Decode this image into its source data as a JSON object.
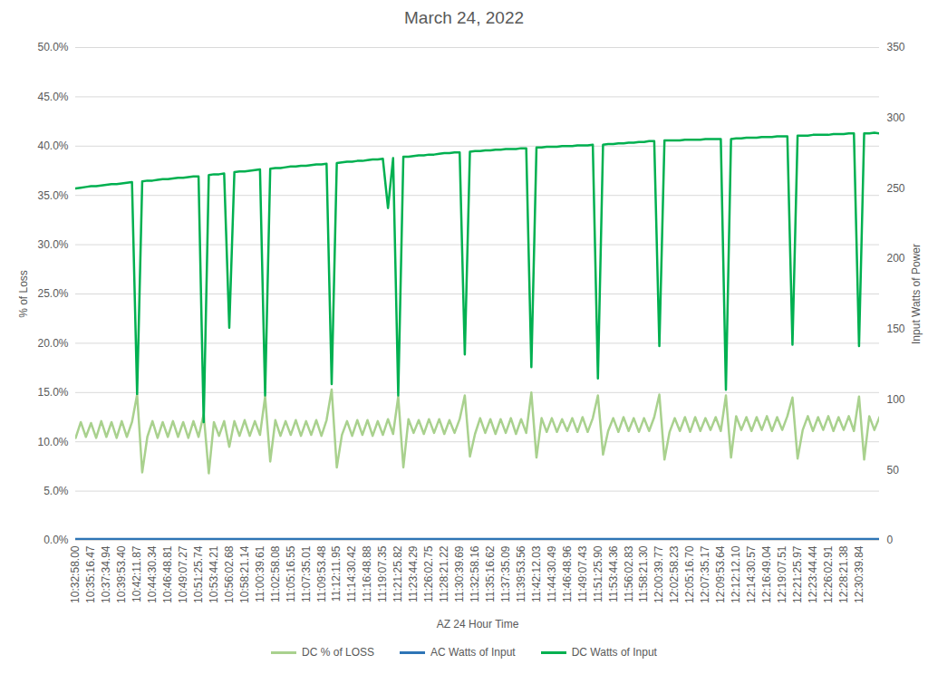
{
  "chart_data": {
    "type": "line",
    "title": "March 24, 2022",
    "x_label": "AZ 24 Hour Time",
    "y_label": "% of Loss",
    "y2_label": "Input Watts of Power",
    "grid": true,
    "legend": "bottom",
    "ylim": [
      0,
      50
    ],
    "yticks": [
      {
        "value": 0,
        "label": "0.0%"
      },
      {
        "value": 5,
        "label": "5.0%"
      },
      {
        "value": 10,
        "label": "10.0%"
      },
      {
        "value": 15,
        "label": "15.0%"
      },
      {
        "value": 20,
        "label": "20.0%"
      },
      {
        "value": 25,
        "label": "25.0%"
      },
      {
        "value": 30,
        "label": "30.0%"
      },
      {
        "value": 35,
        "label": "35.0%"
      },
      {
        "value": 40,
        "label": "40.0%"
      },
      {
        "value": 45,
        "label": "45.0%"
      },
      {
        "value": 50,
        "label": "50.0%"
      }
    ],
    "y2lim": [
      0,
      350
    ],
    "y2ticks": [
      0,
      50,
      100,
      150,
      200,
      250,
      300,
      350
    ],
    "categories": [
      "10:32:58.00",
      null,
      null,
      "10:35:16.47",
      null,
      null,
      "10:37:34.94",
      null,
      null,
      "10:39:53.40",
      null,
      null,
      "10:42:11.87",
      null,
      null,
      "10:44:30.34",
      null,
      null,
      "10:46:48.81",
      null,
      null,
      "10:49:07.27",
      null,
      null,
      "10:51:25.74",
      null,
      null,
      "10:53:44.21",
      null,
      null,
      "10:56:02.68",
      null,
      null,
      "10:58:21.14",
      null,
      null,
      "11:00:39.61",
      null,
      null,
      "11:02:58.08",
      null,
      null,
      "11:05:16.55",
      null,
      null,
      "11:07:35.01",
      null,
      null,
      "11:09:53.48",
      null,
      null,
      "11:12:11.95",
      null,
      null,
      "11:14:30.42",
      null,
      null,
      "11:16:48.88",
      null,
      null,
      "11:19:07.35",
      null,
      null,
      "11:21:25.82",
      null,
      null,
      "11:23:44.29",
      null,
      null,
      "11:26:02.75",
      null,
      null,
      "11:28:21.22",
      null,
      null,
      "11:30:39.69",
      null,
      null,
      "11:32:58.16",
      null,
      null,
      "11:35:16.62",
      null,
      null,
      "11:37:35.09",
      null,
      null,
      "11:39:53.56",
      null,
      null,
      "11:42:12.03",
      null,
      null,
      "11:44:30.49",
      null,
      null,
      "11:46:48.96",
      null,
      null,
      "11:49:07.43",
      null,
      null,
      "11:51:25.90",
      null,
      null,
      "11:53:44.36",
      null,
      null,
      "11:56:02.83",
      null,
      null,
      "11:58:21.30",
      null,
      null,
      "12:00:39.77",
      null,
      null,
      "12:02:58.23",
      null,
      null,
      "12:05:16.70",
      null,
      null,
      "12:07:35.17",
      null,
      null,
      "12:09:53.64",
      null,
      null,
      "12:12:12.10",
      null,
      null,
      "12:14:30.57",
      null,
      null,
      "12:16:49.04",
      null,
      null,
      "12:19:07.51",
      null,
      null,
      "12:21:25.97",
      null,
      null,
      "12:23:44.44",
      null,
      null,
      "12:26:02.91",
      null,
      null,
      "12:28:21.38",
      null,
      null,
      "12:30:39.84",
      null,
      null,
      null,
      null
    ],
    "series": [
      {
        "name": "DC % of LOSS",
        "color": "#a9d18e",
        "axis": "y",
        "values": [
          10.4,
          12.0,
          10.5,
          11.9,
          10.4,
          12.1,
          10.5,
          12.0,
          10.4,
          12.1,
          10.5,
          12.0,
          14.8,
          6.9,
          10.5,
          12.1,
          10.4,
          12.0,
          10.5,
          12.1,
          10.5,
          12.0,
          10.4,
          12.1,
          10.5,
          12.8,
          6.8,
          12.0,
          10.6,
          12.1,
          9.5,
          12.1,
          10.6,
          12.2,
          10.6,
          12.1,
          10.7,
          14.6,
          8.0,
          12.2,
          10.6,
          12.1,
          10.7,
          12.2,
          10.6,
          12.1,
          10.7,
          12.2,
          10.6,
          12.2,
          15.3,
          7.4,
          10.7,
          12.1,
          10.6,
          12.2,
          10.7,
          12.2,
          10.6,
          12.1,
          10.7,
          12.3,
          10.8,
          14.6,
          7.4,
          12.3,
          10.9,
          12.2,
          10.8,
          12.3,
          10.9,
          12.3,
          10.8,
          12.2,
          10.9,
          12.3,
          14.7,
          8.5,
          10.8,
          12.4,
          10.9,
          12.3,
          10.8,
          12.3,
          10.9,
          12.4,
          10.8,
          12.3,
          10.9,
          15.0,
          8.4,
          12.4,
          11.0,
          12.4,
          11.0,
          12.3,
          11.1,
          12.4,
          11.0,
          12.5,
          11.0,
          12.4,
          14.7,
          8.7,
          11.1,
          12.4,
          11.0,
          12.5,
          11.1,
          12.4,
          11.0,
          12.4,
          11.1,
          12.5,
          14.8,
          8.2,
          11.0,
          12.4,
          11.1,
          12.5,
          11.0,
          12.5,
          11.1,
          12.4,
          11.2,
          12.5,
          11.1,
          14.7,
          8.4,
          12.6,
          11.2,
          12.5,
          11.1,
          12.5,
          11.2,
          12.6,
          11.1,
          12.5,
          11.2,
          12.6,
          14.5,
          8.3,
          11.2,
          12.6,
          11.1,
          12.5,
          11.2,
          12.6,
          11.1,
          12.5,
          11.2,
          12.6,
          11.1,
          14.6,
          8.2,
          12.6,
          11.2,
          12.5
        ]
      },
      {
        "name": "AC Watts of Input",
        "color": "#2e75b6",
        "axis": "y2",
        "values": [
          1,
          1,
          1,
          1,
          1,
          1,
          1,
          1,
          1,
          1,
          1,
          1,
          1,
          1,
          1,
          1,
          1,
          1,
          1,
          1,
          1,
          1,
          1,
          1,
          1,
          1,
          1,
          1,
          1,
          1,
          1,
          1,
          1,
          1,
          1,
          1,
          1,
          1,
          1,
          1,
          1,
          1,
          1,
          1,
          1,
          1,
          1,
          1,
          1,
          1,
          1,
          1,
          1,
          1,
          1,
          1,
          1,
          1,
          1,
          1,
          1,
          1,
          1,
          1,
          1,
          1,
          1,
          1,
          1,
          1,
          1,
          1,
          1,
          1,
          1,
          1,
          1,
          1,
          1,
          1,
          1,
          1,
          1,
          1,
          1,
          1,
          1,
          1,
          1,
          1,
          1,
          1,
          1,
          1,
          1,
          1,
          1,
          1,
          1,
          1,
          1,
          1,
          1,
          1,
          1,
          1,
          1,
          1,
          1,
          1,
          1,
          1,
          1,
          1,
          1,
          1,
          1,
          1,
          1,
          1,
          1,
          1,
          1,
          1,
          1,
          1,
          1,
          1,
          1,
          1,
          1,
          1,
          1,
          1,
          1,
          1,
          1,
          1,
          1,
          1,
          1,
          1,
          1,
          1,
          1,
          1,
          1,
          1,
          1,
          1,
          1,
          1,
          1,
          1,
          1,
          1,
          1,
          1
        ]
      },
      {
        "name": "DC Watts of Input",
        "color": "#00b050",
        "axis": "y2",
        "values": [
          250,
          250.5,
          251,
          251.5,
          251.5,
          252,
          252.5,
          253,
          253,
          253.5,
          254,
          254.5,
          104,
          255,
          255.5,
          255.5,
          256,
          256.5,
          256.5,
          257,
          257.5,
          257.5,
          258,
          258.5,
          258.5,
          84,
          259.5,
          260,
          260,
          260.5,
          151,
          261.5,
          262,
          262,
          262.5,
          263,
          263.5,
          103,
          264,
          264.5,
          264.5,
          265,
          265.5,
          265.5,
          266,
          266,
          266.5,
          267,
          267,
          267.5,
          111,
          268,
          268.5,
          269,
          269,
          269.5,
          269.5,
          270,
          270.5,
          270.5,
          271,
          236,
          271.5,
          103,
          272.5,
          272.5,
          273,
          273.5,
          273.5,
          274,
          274,
          274.5,
          275,
          275,
          275.5,
          275.5,
          132,
          276,
          276.5,
          276.5,
          277,
          277,
          277.5,
          277.5,
          278,
          278,
          278,
          278.5,
          278.5,
          123,
          279,
          279,
          279.5,
          279.5,
          279.5,
          280,
          280,
          280,
          280.5,
          280.5,
          280.5,
          281,
          115,
          281,
          281.5,
          281.5,
          282,
          282,
          282.5,
          282.5,
          283,
          283,
          283.5,
          283.5,
          138,
          284,
          284,
          284,
          284,
          284.5,
          284.5,
          284.5,
          284.5,
          285,
          285,
          285,
          285,
          107,
          285,
          285.5,
          285.5,
          286,
          286,
          286,
          286.5,
          286.5,
          286.5,
          287,
          287,
          287,
          139,
          287.5,
          287.5,
          287.5,
          288,
          288,
          288,
          288,
          288.5,
          288.5,
          288.5,
          289,
          289,
          138,
          289,
          289,
          289.5,
          289
        ]
      }
    ]
  }
}
